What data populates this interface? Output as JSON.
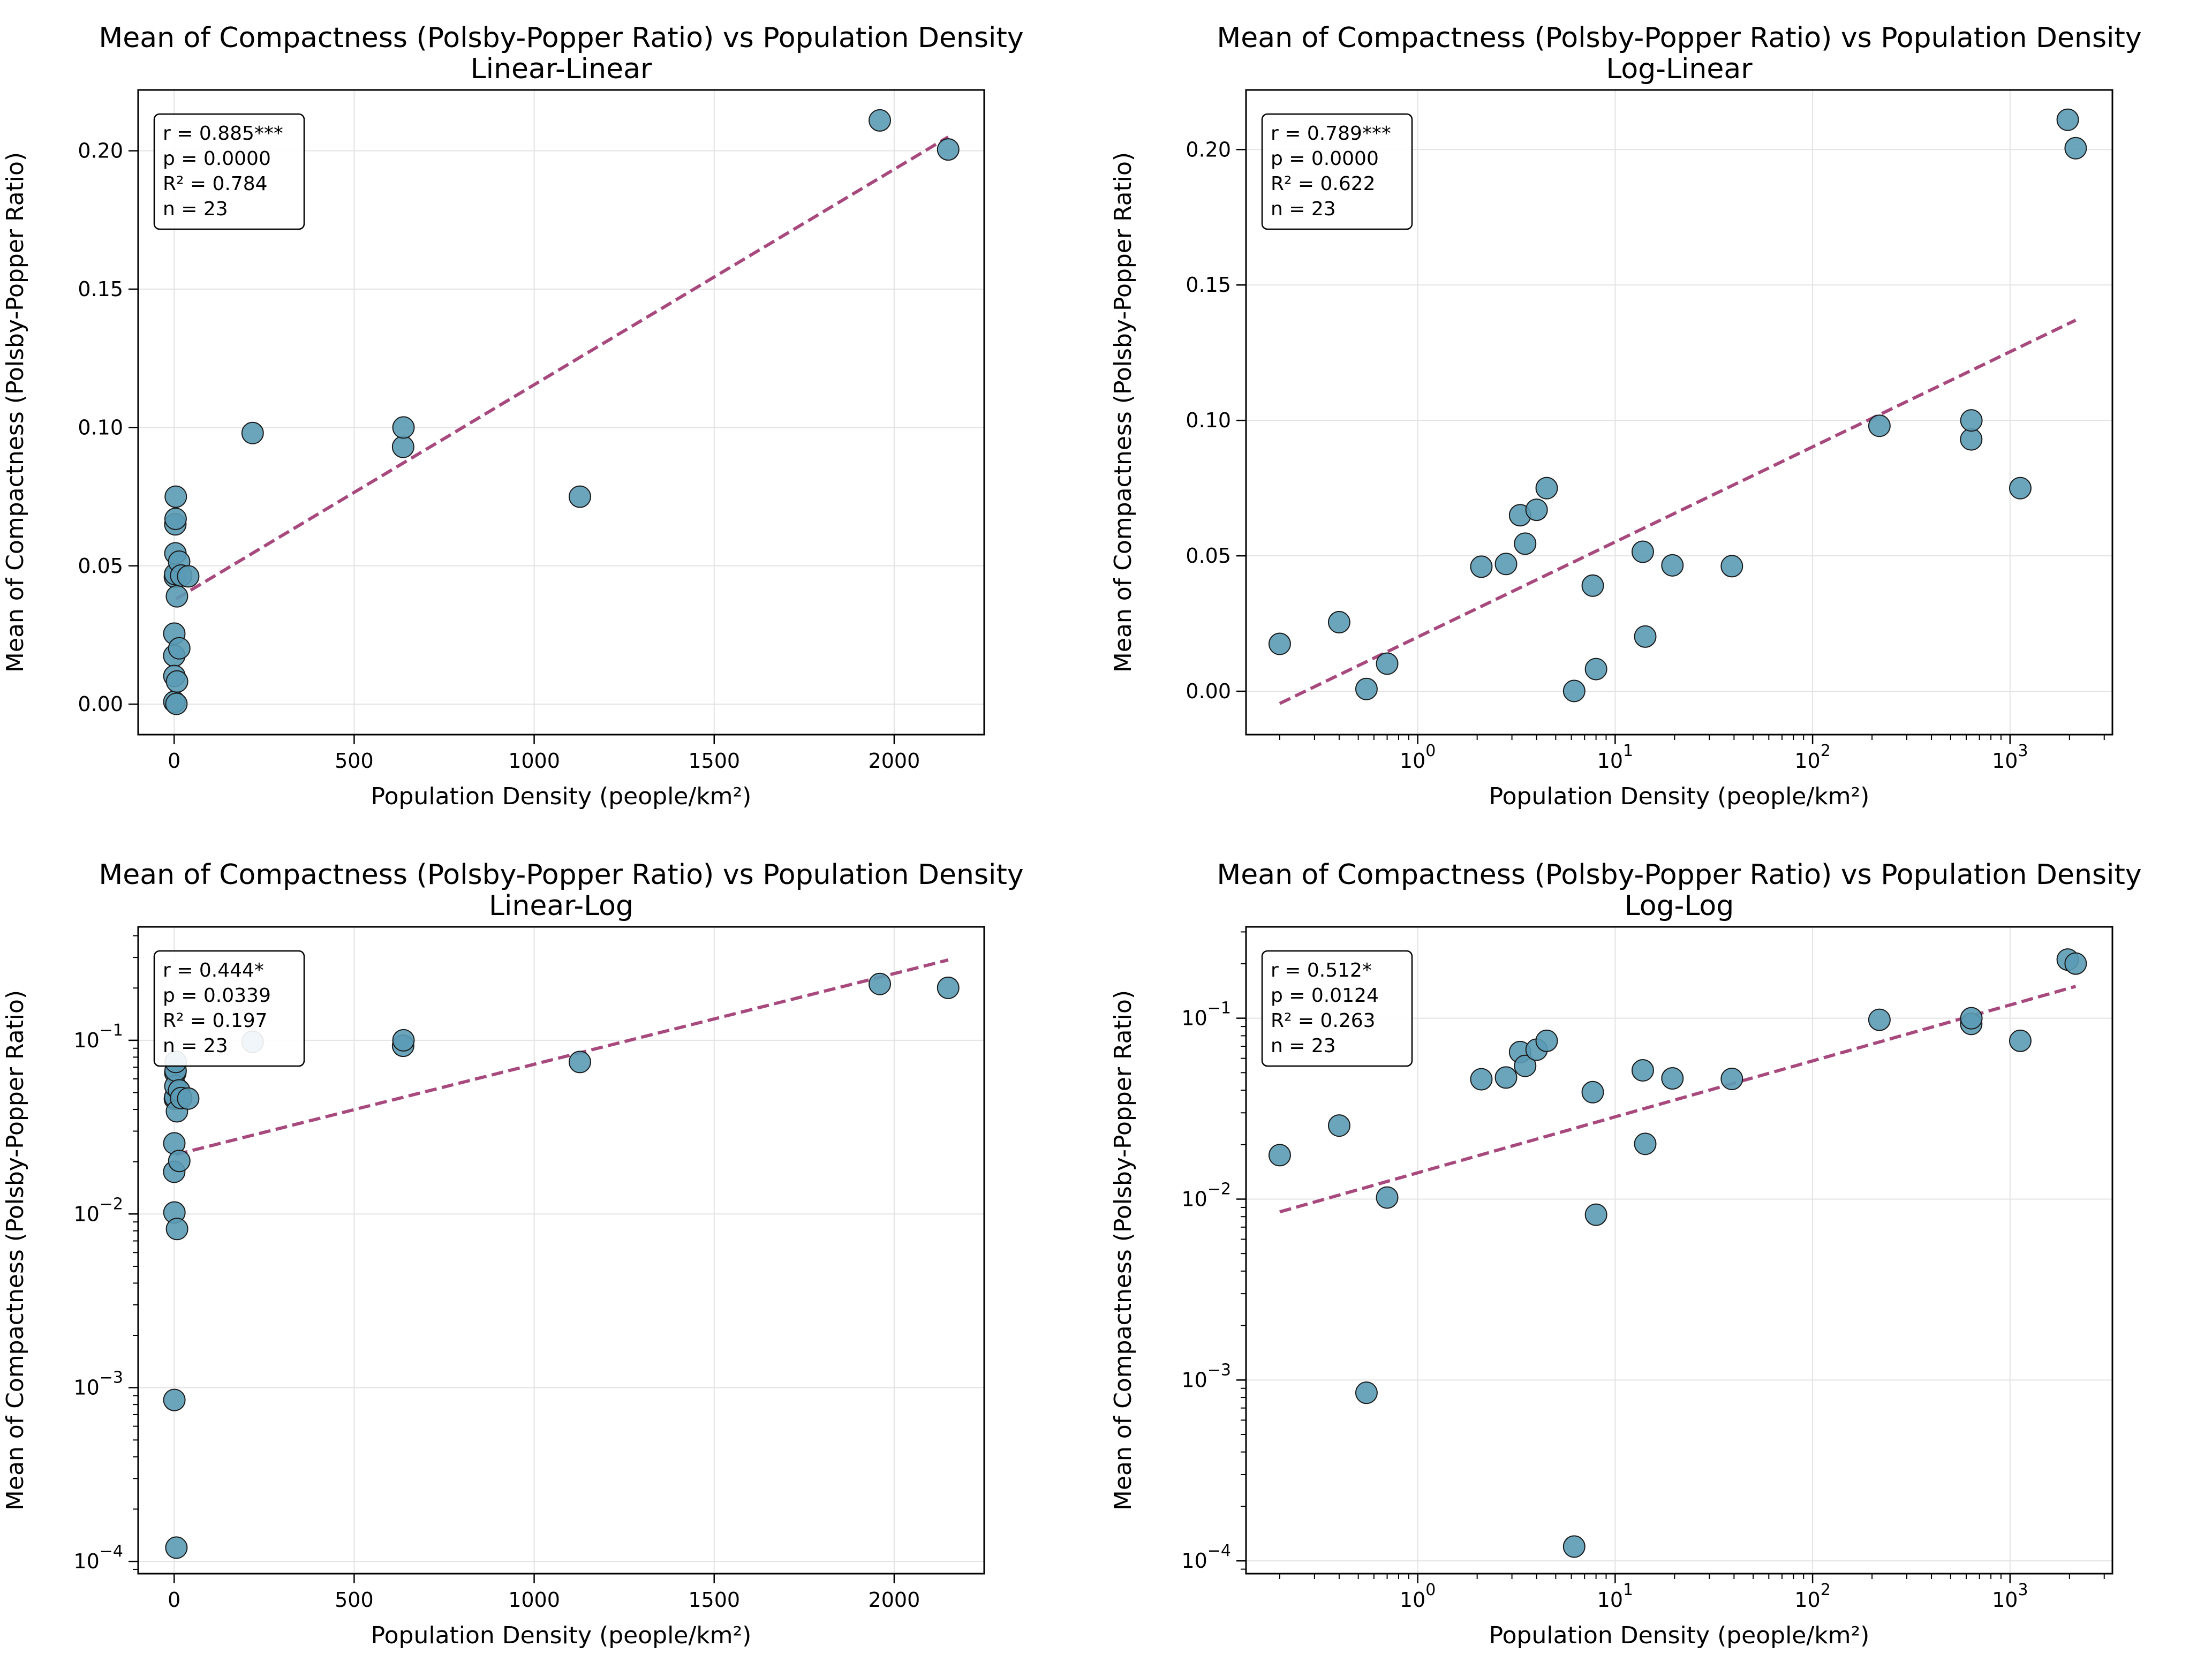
{
  "figure": {
    "title": "Mean of Compactness (Polsby-Popper Ratio) vs Population Density"
  },
  "style": {
    "point_color": "#5b9bb5",
    "point_edge": "#1a1a1a",
    "trend_color": "#a8497e",
    "grid_color": "#e3e3e3"
  },
  "chart_data": [
    {
      "type": "scatter",
      "title": "Mean of Compactness (Polsby-Popper Ratio) vs Population Density",
      "subtitle": "Linear-Linear",
      "xlabel": "Population Density (people/km²)",
      "ylabel": "Mean of Compactness (Polsby-Popper Ratio)",
      "xscale": "linear",
      "yscale": "linear",
      "xlim": [
        -100,
        2250
      ],
      "ylim": [
        -0.011,
        0.222
      ],
      "xticks": [
        {
          "v": 0,
          "label": "0"
        },
        {
          "v": 500,
          "label": "500"
        },
        {
          "v": 1000,
          "label": "1000"
        },
        {
          "v": 1500,
          "label": "1500"
        },
        {
          "v": 2000,
          "label": "2000"
        }
      ],
      "yticks": [
        {
          "v": 0,
          "label": "0.00"
        },
        {
          "v": 0.05,
          "label": "0.05"
        },
        {
          "v": 0.1,
          "label": "0.10"
        },
        {
          "v": 0.15,
          "label": "0.15"
        },
        {
          "v": 0.2,
          "label": "0.20"
        }
      ],
      "trend": {
        "x": [
          5,
          2150
        ],
        "y": [
          0.038,
          0.205
        ]
      },
      "stats": [
        "r = 0.885***",
        "p = 0.0000",
        "R² = 0.784",
        "n = 23"
      ],
      "x": [
        0.2,
        0.4,
        0.55,
        0.7,
        2.1,
        2.8,
        3.3,
        3.5,
        4,
        4.5,
        6.2,
        7.7,
        8,
        13.8,
        14.2,
        19.5,
        39,
        218,
        636,
        637,
        1127,
        1960,
        2150
      ],
      "y": [
        0.0175,
        0.0255,
        0.00085,
        0.0102,
        0.046,
        0.047,
        0.065,
        0.0545,
        0.067,
        0.075,
        0.00012,
        0.039,
        0.0082,
        0.0515,
        0.0202,
        0.0465,
        0.0462,
        0.098,
        0.093,
        0.1,
        0.075,
        0.211,
        0.2005
      ]
    },
    {
      "type": "scatter",
      "title": "Mean of Compactness (Polsby-Popper Ratio) vs Population Density",
      "subtitle": "Log-Linear",
      "xlabel": "Population Density (people/km²)",
      "ylabel": "Mean of Compactness (Polsby-Popper Ratio)",
      "xscale": "log",
      "yscale": "linear",
      "xlim": [
        0.135,
        3300
      ],
      "ylim": [
        -0.016,
        0.222
      ],
      "xticks": [
        {
          "v": 1,
          "label": "10^0"
        },
        {
          "v": 10,
          "label": "10^1"
        },
        {
          "v": 100,
          "label": "10^2"
        },
        {
          "v": 1000,
          "label": "10^3"
        }
      ],
      "yticks": [
        {
          "v": 0,
          "label": "0.00"
        },
        {
          "v": 0.05,
          "label": "0.05"
        },
        {
          "v": 0.1,
          "label": "0.10"
        },
        {
          "v": 0.15,
          "label": "0.15"
        },
        {
          "v": 0.2,
          "label": "0.20"
        }
      ],
      "trend": {
        "x": [
          0.2,
          2150
        ],
        "y": [
          -0.0045,
          0.137
        ]
      },
      "stats": [
        "r = 0.789***",
        "p = 0.0000",
        "R² = 0.622",
        "n = 23"
      ],
      "x": [
        0.2,
        0.4,
        0.55,
        0.7,
        2.1,
        2.8,
        3.3,
        3.5,
        4,
        4.5,
        6.2,
        7.7,
        8,
        13.8,
        14.2,
        19.5,
        39,
        218,
        636,
        637,
        1127,
        1960,
        2150
      ],
      "y": [
        0.0175,
        0.0255,
        0.00085,
        0.0102,
        0.046,
        0.047,
        0.065,
        0.0545,
        0.067,
        0.075,
        0.00012,
        0.039,
        0.0082,
        0.0515,
        0.0202,
        0.0465,
        0.0462,
        0.098,
        0.093,
        0.1,
        0.075,
        0.211,
        0.2005
      ]
    },
    {
      "type": "scatter",
      "title": "Mean of Compactness (Polsby-Popper Ratio) vs Population Density",
      "subtitle": "Linear-Log",
      "xlabel": "Population Density (people/km²)",
      "ylabel": "Mean of Compactness (Polsby-Popper Ratio)",
      "xscale": "linear",
      "yscale": "log",
      "xlim": [
        -100,
        2250
      ],
      "ylim": [
        8.5e-05,
        0.45
      ],
      "xticks": [
        {
          "v": 0,
          "label": "0"
        },
        {
          "v": 500,
          "label": "500"
        },
        {
          "v": 1000,
          "label": "1000"
        },
        {
          "v": 1500,
          "label": "1500"
        },
        {
          "v": 2000,
          "label": "2000"
        }
      ],
      "yticks": [
        {
          "v": 0.0001,
          "label": "10^-4"
        },
        {
          "v": 0.001,
          "label": "10^-3"
        },
        {
          "v": 0.01,
          "label": "10^-2"
        },
        {
          "v": 0.1,
          "label": "10^-1"
        }
      ],
      "trend": {
        "x": [
          5,
          2150
        ],
        "y": [
          0.022,
          0.29
        ]
      },
      "stats": [
        "r = 0.444*",
        "p = 0.0339",
        "R² = 0.197",
        "n = 23"
      ],
      "x": [
        0.2,
        0.4,
        0.55,
        0.7,
        2.1,
        2.8,
        3.3,
        3.5,
        4,
        4.5,
        6.2,
        7.7,
        8,
        13.8,
        14.2,
        19.5,
        39,
        218,
        636,
        637,
        1127,
        1960,
        2150
      ],
      "y": [
        0.0175,
        0.0255,
        0.00085,
        0.0102,
        0.046,
        0.047,
        0.065,
        0.0545,
        0.067,
        0.075,
        0.00012,
        0.039,
        0.0082,
        0.0515,
        0.0202,
        0.0465,
        0.0462,
        0.098,
        0.093,
        0.1,
        0.075,
        0.211,
        0.2005
      ]
    },
    {
      "type": "scatter",
      "title": "Mean of Compactness (Polsby-Popper Ratio) vs Population Density",
      "subtitle": "Log-Log",
      "xlabel": "Population Density (people/km²)",
      "ylabel": "Mean of Compactness (Polsby-Popper Ratio)",
      "xscale": "log",
      "yscale": "log",
      "xlim": [
        0.135,
        3300
      ],
      "ylim": [
        8.5e-05,
        0.32
      ],
      "xticks": [
        {
          "v": 1,
          "label": "10^0"
        },
        {
          "v": 10,
          "label": "10^1"
        },
        {
          "v": 100,
          "label": "10^2"
        },
        {
          "v": 1000,
          "label": "10^3"
        }
      ],
      "yticks": [
        {
          "v": 0.0001,
          "label": "10^-4"
        },
        {
          "v": 0.001,
          "label": "10^-3"
        },
        {
          "v": 0.01,
          "label": "10^-2"
        },
        {
          "v": 0.1,
          "label": "10^-1"
        }
      ],
      "trend": {
        "x": [
          0.2,
          2150
        ],
        "y": [
          0.0085,
          0.15
        ]
      },
      "stats": [
        "r = 0.512*",
        "p = 0.0124",
        "R² = 0.263",
        "n = 23"
      ],
      "x": [
        0.2,
        0.4,
        0.55,
        0.7,
        2.1,
        2.8,
        3.3,
        3.5,
        4,
        4.5,
        6.2,
        7.7,
        8,
        13.8,
        14.2,
        19.5,
        39,
        218,
        636,
        637,
        1127,
        1960,
        2150
      ],
      "y": [
        0.0175,
        0.0255,
        0.00085,
        0.0102,
        0.046,
        0.047,
        0.065,
        0.0545,
        0.067,
        0.075,
        0.00012,
        0.039,
        0.0082,
        0.0515,
        0.0202,
        0.0465,
        0.0462,
        0.098,
        0.093,
        0.1,
        0.075,
        0.211,
        0.2005
      ]
    }
  ]
}
